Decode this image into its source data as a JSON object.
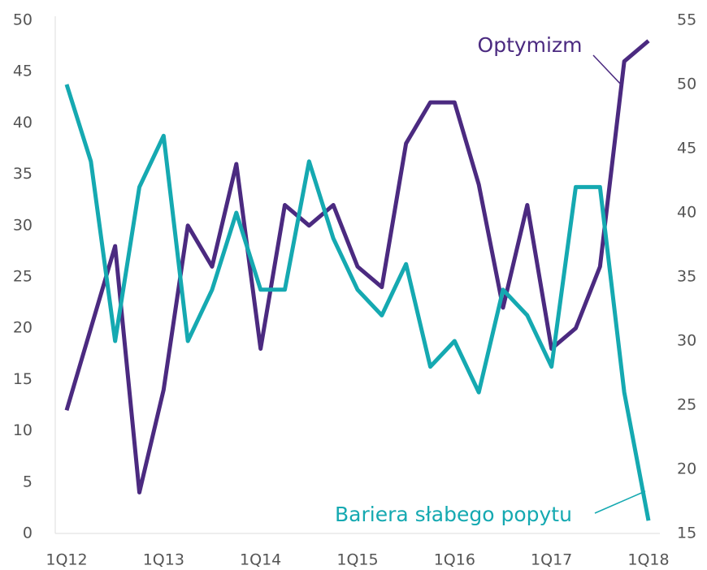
{
  "chart_data": {
    "type": "line",
    "categories": [
      "1Q12",
      null,
      null,
      null,
      "1Q13",
      null,
      null,
      null,
      "1Q14",
      null,
      null,
      null,
      "1Q15",
      null,
      null,
      null,
      "1Q16",
      null,
      null,
      null,
      "1Q17",
      null,
      null,
      null,
      "1Q18"
    ],
    "series": [
      {
        "name": "Optymizm",
        "color": "#4b2a80",
        "values": [
          12,
          20,
          28,
          4,
          14,
          30,
          26,
          36,
          18,
          32,
          30,
          32,
          26,
          24,
          38,
          42,
          42,
          34,
          22,
          32,
          18,
          20,
          26,
          46,
          48
        ]
      },
      {
        "name": "Bariera słabego popytu",
        "color": "#15a9b1",
        "axis": "y2",
        "values": [
          50,
          44,
          30,
          42,
          46,
          30,
          34,
          40,
          34,
          34,
          44,
          38,
          34,
          32,
          36,
          28,
          30,
          26,
          34,
          32,
          28,
          42,
          42,
          26,
          16
        ]
      }
    ],
    "ylim": [
      0,
      50
    ],
    "yticks": [
      0,
      5,
      10,
      15,
      20,
      25,
      30,
      35,
      40,
      45,
      50
    ],
    "y2lim": [
      15,
      55
    ],
    "y2ticks": [
      15,
      20,
      25,
      30,
      35,
      40,
      45,
      50,
      55
    ],
    "grid": false
  }
}
